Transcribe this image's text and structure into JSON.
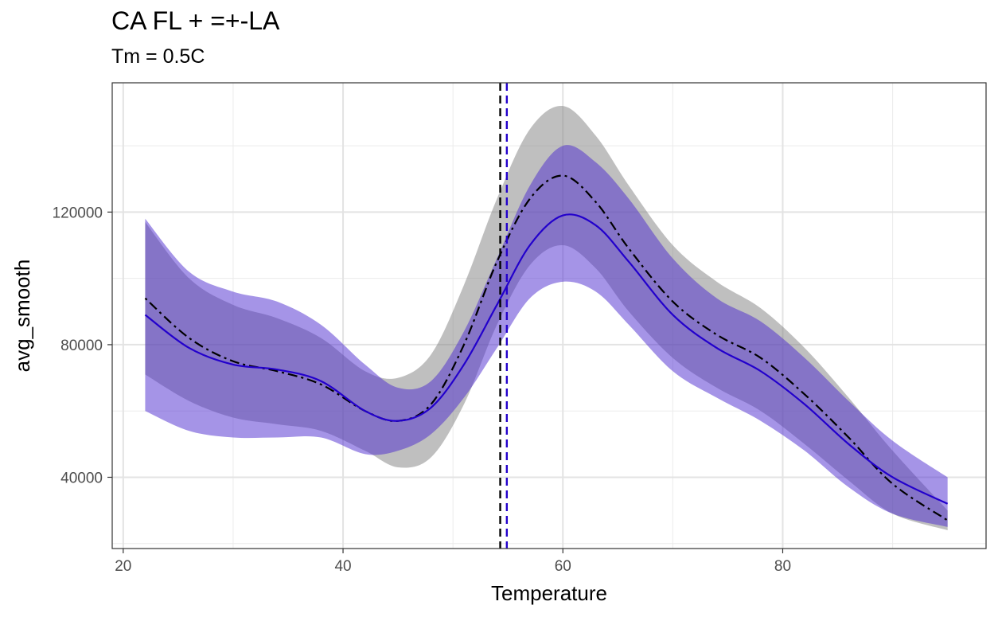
{
  "chart_data": {
    "type": "line",
    "title": "CA FL + =+-LA",
    "subtitle": "Tm = 0.5C",
    "xlabel": "Temperature",
    "ylabel": "avg_smooth",
    "xlim": [
      19,
      98.5
    ],
    "ylim": [
      18500,
      159000
    ],
    "xticks": [
      20,
      40,
      60,
      80
    ],
    "yticks": [
      40000,
      80000,
      120000
    ],
    "x_tick_labels": [
      "20",
      "40",
      "60",
      "80"
    ],
    "y_tick_labels": [
      "40000",
      "80000",
      "120000"
    ],
    "grid": true,
    "theme": "bw",
    "series": [
      {
        "style": "dotdash",
        "color": "#000000",
        "ribbon_color": "#7f7f7f",
        "x": [
          22,
          26,
          30,
          34,
          38,
          42,
          45,
          48,
          51,
          54,
          57,
          60,
          63,
          66,
          70,
          74,
          78,
          82,
          86,
          90,
          95
        ],
        "y": [
          94000,
          82000,
          75000,
          72000,
          68000,
          60000,
          57000,
          62000,
          80000,
          105000,
          124000,
          131000,
          123000,
          109000,
          93000,
          83000,
          76000,
          65000,
          52000,
          38000,
          27000
        ],
        "lower": [
          71000,
          63000,
          58000,
          56000,
          54000,
          48000,
          43000,
          46000,
          62000,
          86000,
          104000,
          110000,
          103000,
          90000,
          76000,
          67000,
          60000,
          50000,
          39000,
          29000,
          24000
        ],
        "upper": [
          117000,
          100000,
          92000,
          88000,
          82000,
          72000,
          70000,
          77000,
          98000,
          124000,
          145000,
          152000,
          143000,
          128000,
          110000,
          99000,
          91000,
          79000,
          64000,
          48000,
          30000
        ]
      },
      {
        "style": "solid",
        "color": "#2200cc",
        "ribbon_color": "#4b2ad0",
        "x": [
          22,
          26,
          30,
          34,
          38,
          42,
          45,
          48,
          51,
          54,
          57,
          60,
          63,
          66,
          70,
          74,
          78,
          82,
          86,
          90,
          95
        ],
        "y": [
          89000,
          79000,
          74000,
          72500,
          69000,
          60000,
          57000,
          61000,
          74000,
          92000,
          110000,
          119000,
          116000,
          105000,
          89000,
          79000,
          72000,
          62000,
          50000,
          40000,
          32000
        ],
        "lower": [
          60000,
          54000,
          52000,
          52000,
          52000,
          47000,
          48000,
          53000,
          64000,
          79000,
          94000,
          99000,
          96000,
          86000,
          72000,
          64000,
          57000,
          48000,
          37000,
          29000,
          25000
        ],
        "upper": [
          118000,
          102000,
          96000,
          93000,
          86000,
          74000,
          67000,
          69000,
          84000,
          106000,
          128000,
          140000,
          135000,
          124000,
          106000,
          94000,
          87000,
          76000,
          63000,
          51000,
          40000
        ]
      }
    ],
    "vlines": [
      {
        "x": 54.3,
        "color": "#000000",
        "style": "dashed"
      },
      {
        "x": 54.9,
        "color": "#2200cc",
        "style": "dashed"
      }
    ]
  }
}
